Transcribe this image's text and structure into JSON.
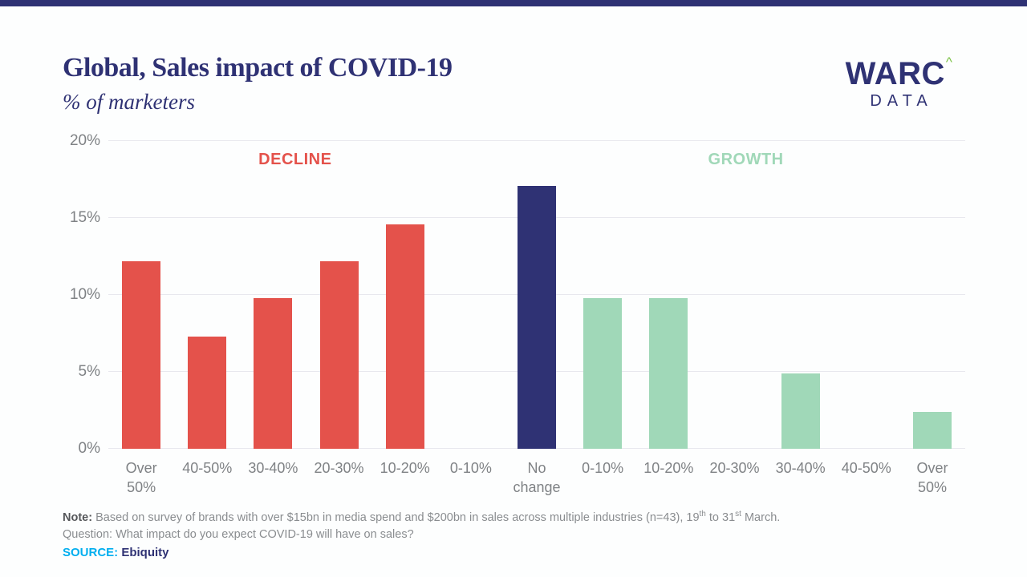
{
  "page": {
    "top_strip_color": "#2F3274"
  },
  "header": {
    "title": "Global, Sales impact of COVID-19",
    "subtitle": "% of marketers",
    "logo": {
      "main": "WARC",
      "caret": "^",
      "sub": "DATA"
    }
  },
  "chart_data": {
    "type": "bar",
    "title": "Global, Sales impact of COVID-19",
    "subtitle": "% of marketers",
    "categories": [
      "Over\n50%",
      "40-50%",
      "30-40%",
      "20-30%",
      "10-20%",
      "0-10%",
      "No\nchange",
      "0-10%",
      "10-20%",
      "20-30%",
      "30-40%",
      "40-50%",
      "Over\n50%"
    ],
    "values": [
      12.2,
      7.3,
      9.8,
      12.2,
      14.6,
      0,
      17.1,
      9.8,
      9.8,
      0,
      4.9,
      0,
      2.4
    ],
    "groups": [
      "decline",
      "decline",
      "decline",
      "decline",
      "decline",
      "decline",
      "neutral",
      "growth",
      "growth",
      "growth",
      "growth",
      "growth",
      "growth"
    ],
    "group_colors": {
      "decline": "#E4524B",
      "neutral": "#2F3274",
      "growth": "#A0D8B8"
    },
    "y_ticks": [
      "0%",
      "5%",
      "10%",
      "15%",
      "20%"
    ],
    "ylim": [
      0,
      20
    ],
    "grid": true,
    "legend_position": "none",
    "annotations": [
      {
        "label": "DECLINE",
        "color": "#E4524B"
      },
      {
        "label": "GROWTH",
        "color": "#A0D8B8"
      }
    ]
  },
  "notes": {
    "note_label": "Note:",
    "note_seg1": " Based on survey of brands with over $15bn in media spend and $200bn in sales across multiple industries (n=43), 19",
    "note_sup1": "th",
    "note_seg2": " to 31",
    "note_sup2": "st",
    "note_seg3": " March.",
    "question": "Question: What impact do you expect COVID-19 will have on sales?",
    "source_label": "SOURCE:",
    "source_value": " Ebiquity"
  }
}
